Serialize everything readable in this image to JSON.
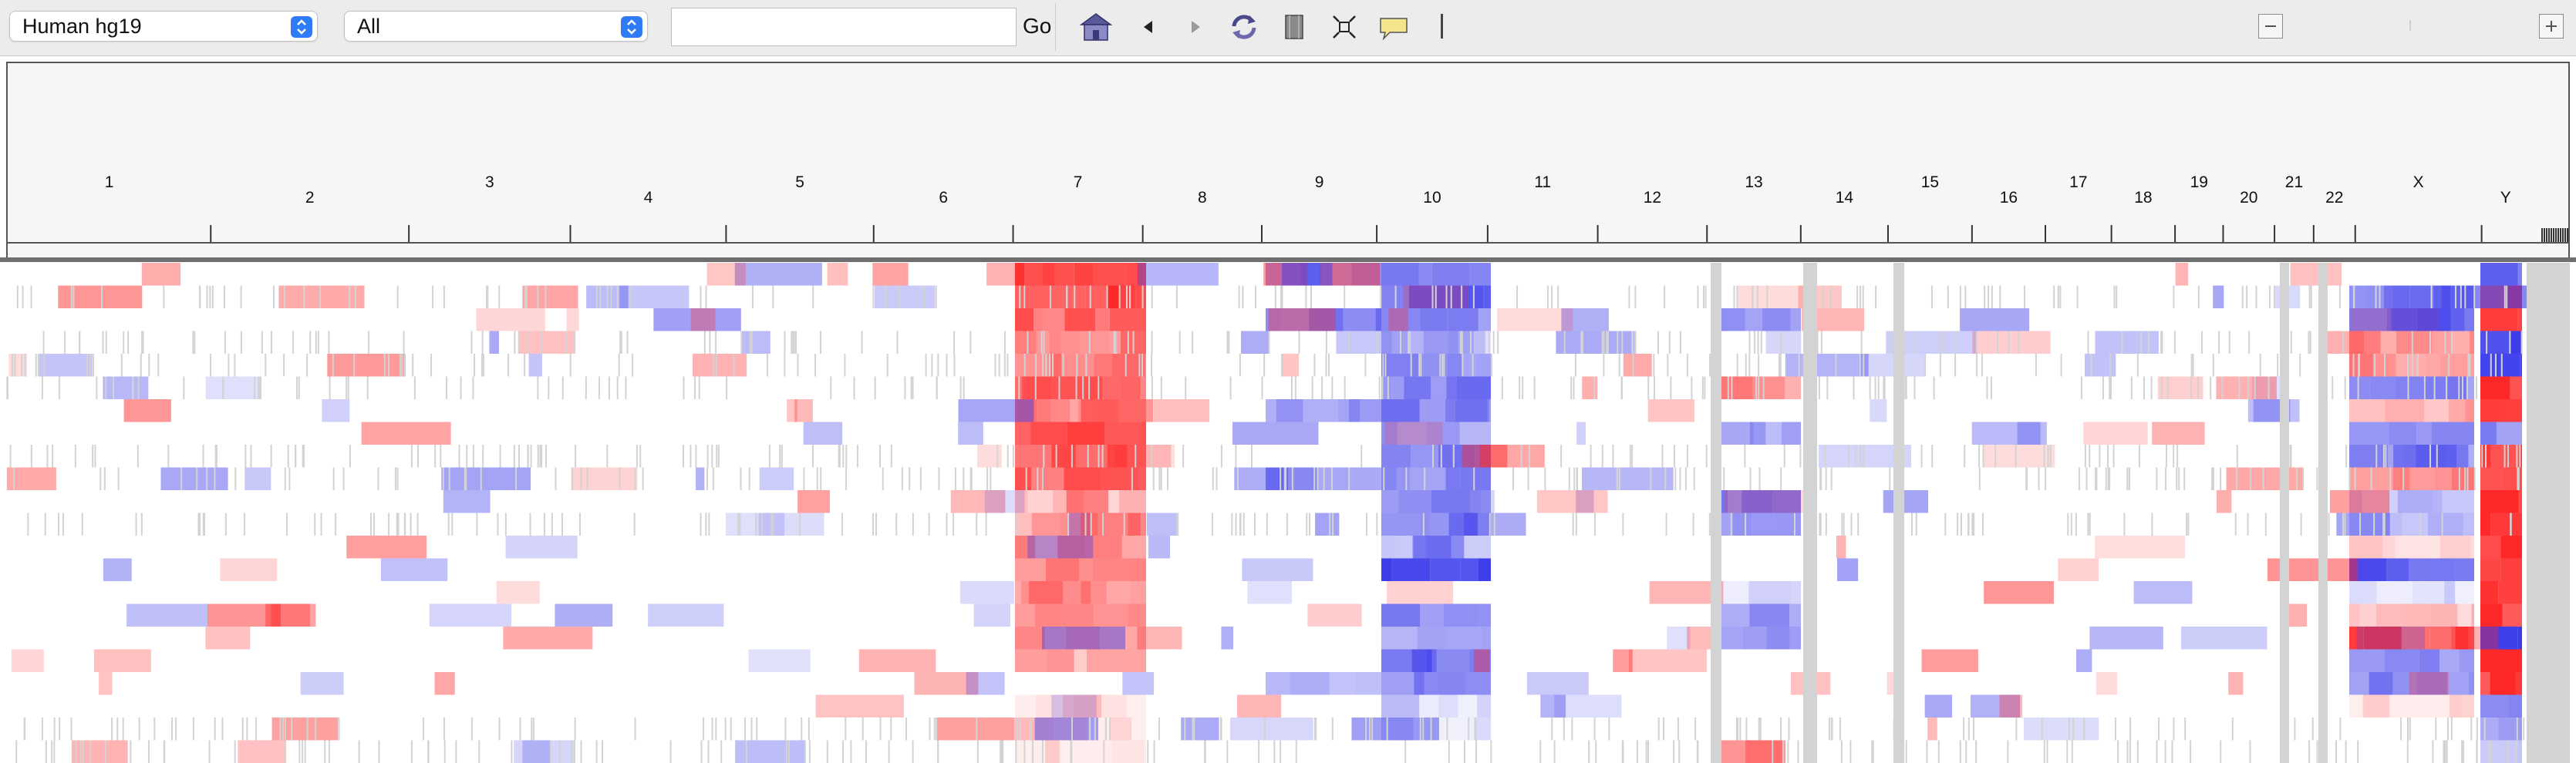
{
  "toolbar": {
    "genome_select": "Human hg19",
    "chromosome_select": "All",
    "locus_value": "",
    "go_label": "Go",
    "icons": [
      "home-icon",
      "back-icon",
      "forward-icon",
      "refresh-icon",
      "region-of-interest-icon",
      "resize-to-window-icon",
      "popup-text-icon"
    ],
    "zoom_minus": "−",
    "zoom_plus": "+"
  },
  "ruler": {
    "chromosomes": [
      {
        "label": "1",
        "size": 249
      },
      {
        "label": "2",
        "size": 243
      },
      {
        "label": "3",
        "size": 198
      },
      {
        "label": "4",
        "size": 191
      },
      {
        "label": "5",
        "size": 181
      },
      {
        "label": "6",
        "size": 171
      },
      {
        "label": "7",
        "size": 159
      },
      {
        "label": "8",
        "size": 146
      },
      {
        "label": "9",
        "size": 141
      },
      {
        "label": "10",
        "size": 136
      },
      {
        "label": "11",
        "size": 135
      },
      {
        "label": "12",
        "size": 134
      },
      {
        "label": "13",
        "size": 115
      },
      {
        "label": "14",
        "size": 107
      },
      {
        "label": "15",
        "size": 103
      },
      {
        "label": "16",
        "size": 90
      },
      {
        "label": "17",
        "size": 81
      },
      {
        "label": "18",
        "size": 78
      },
      {
        "label": "19",
        "size": 59
      },
      {
        "label": "20",
        "size": 63
      },
      {
        "label": "21",
        "size": 48
      },
      {
        "label": "22",
        "size": 51
      },
      {
        "label": "X",
        "size": 155
      },
      {
        "label": "Y",
        "size": 59
      }
    ]
  },
  "heatmap": {
    "colors": {
      "amplification": "#ff0000",
      "deletion": "#0000ff",
      "neutral": "#ffffff",
      "no_data": "#d3d3d3"
    },
    "sample_count": 22
  }
}
